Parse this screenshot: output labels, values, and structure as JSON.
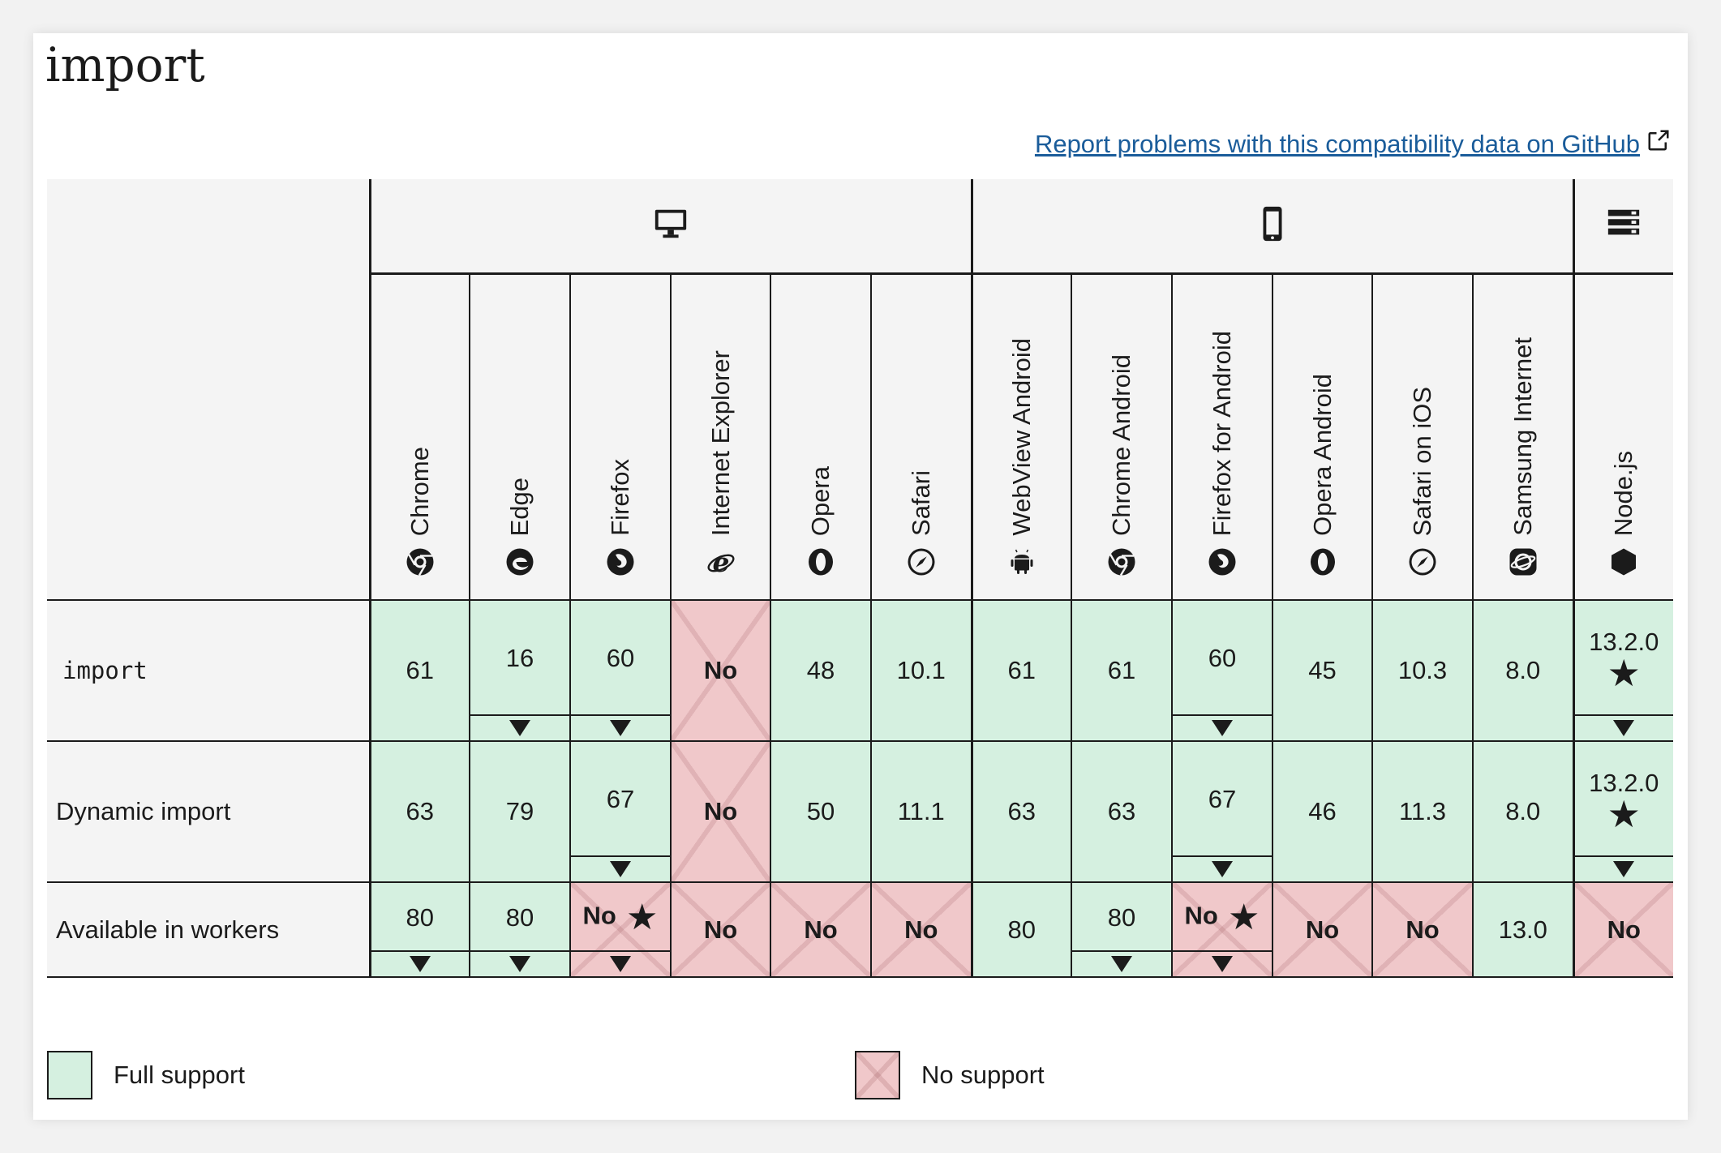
{
  "page": {
    "title": "import"
  },
  "report_link": {
    "label": "Report problems with this compatibility data on GitHub",
    "icon": "external-link-icon"
  },
  "accent_colors": {
    "full_support": "#d5f0e0",
    "no_support": "#f0c8ca",
    "link": "#1a5c9a"
  },
  "platforms": [
    {
      "name": "desktop",
      "icon": "desktop-icon"
    },
    {
      "name": "mobile",
      "icon": "mobile-icon"
    },
    {
      "name": "server",
      "icon": "server-icon"
    }
  ],
  "browsers": [
    {
      "name": "Chrome",
      "icon": "chrome-icon"
    },
    {
      "name": "Edge",
      "icon": "edge-icon"
    },
    {
      "name": "Firefox",
      "icon": "firefox-icon"
    },
    {
      "name": "Internet Explorer",
      "icon": "ie-icon"
    },
    {
      "name": "Opera",
      "icon": "opera-icon"
    },
    {
      "name": "Safari",
      "icon": "safari-icon"
    },
    {
      "name": "WebView Android",
      "icon": "android-icon"
    },
    {
      "name": "Chrome Android",
      "icon": "chrome-icon"
    },
    {
      "name": "Firefox for Android",
      "icon": "firefox-icon"
    },
    {
      "name": "Opera Android",
      "icon": "opera-icon"
    },
    {
      "name": "Safari on iOS",
      "icon": "safari-icon"
    },
    {
      "name": "Samsung Internet",
      "icon": "samsung-icon"
    },
    {
      "name": "Node.js",
      "icon": "nodejs-icon"
    }
  ],
  "features": [
    {
      "name": "import",
      "code": true,
      "cells": [
        {
          "val": "61",
          "support": "full",
          "toggle": false,
          "star": false
        },
        {
          "val": "16",
          "support": "full",
          "toggle": true,
          "star": false
        },
        {
          "val": "60",
          "support": "full",
          "toggle": true,
          "star": false
        },
        {
          "val": "No",
          "support": "no",
          "toggle": false,
          "star": false
        },
        {
          "val": "48",
          "support": "full",
          "toggle": false,
          "star": false
        },
        {
          "val": "10.1",
          "support": "full",
          "toggle": false,
          "star": false
        },
        {
          "val": "61",
          "support": "full",
          "toggle": false,
          "star": false
        },
        {
          "val": "61",
          "support": "full",
          "toggle": false,
          "star": false
        },
        {
          "val": "60",
          "support": "full",
          "toggle": true,
          "star": false
        },
        {
          "val": "45",
          "support": "full",
          "toggle": false,
          "star": false
        },
        {
          "val": "10.3",
          "support": "full",
          "toggle": false,
          "star": false
        },
        {
          "val": "8.0",
          "support": "full",
          "toggle": false,
          "star": false
        },
        {
          "val": "13.2.0",
          "support": "full",
          "toggle": true,
          "star": true
        }
      ]
    },
    {
      "name": "Dynamic import",
      "code": false,
      "cells": [
        {
          "val": "63",
          "support": "full",
          "toggle": false,
          "star": false
        },
        {
          "val": "79",
          "support": "full",
          "toggle": false,
          "star": false
        },
        {
          "val": "67",
          "support": "full",
          "toggle": true,
          "star": false
        },
        {
          "val": "No",
          "support": "no",
          "toggle": false,
          "star": false
        },
        {
          "val": "50",
          "support": "full",
          "toggle": false,
          "star": false
        },
        {
          "val": "11.1",
          "support": "full",
          "toggle": false,
          "star": false
        },
        {
          "val": "63",
          "support": "full",
          "toggle": false,
          "star": false
        },
        {
          "val": "63",
          "support": "full",
          "toggle": false,
          "star": false
        },
        {
          "val": "67",
          "support": "full",
          "toggle": true,
          "star": false
        },
        {
          "val": "46",
          "support": "full",
          "toggle": false,
          "star": false
        },
        {
          "val": "11.3",
          "support": "full",
          "toggle": false,
          "star": false
        },
        {
          "val": "8.0",
          "support": "full",
          "toggle": false,
          "star": false
        },
        {
          "val": "13.2.0",
          "support": "full",
          "toggle": true,
          "star": true
        }
      ]
    },
    {
      "name": "Available in workers",
      "code": false,
      "cells": [
        {
          "val": "80",
          "support": "full",
          "toggle": true,
          "star": false
        },
        {
          "val": "80",
          "support": "full",
          "toggle": true,
          "star": false
        },
        {
          "val": "No",
          "support": "no",
          "toggle": true,
          "star": true
        },
        {
          "val": "No",
          "support": "no",
          "toggle": false,
          "star": false
        },
        {
          "val": "No",
          "support": "no",
          "toggle": false,
          "star": false
        },
        {
          "val": "No",
          "support": "no",
          "toggle": false,
          "star": false
        },
        {
          "val": "80",
          "support": "full",
          "toggle": false,
          "star": false
        },
        {
          "val": "80",
          "support": "full",
          "toggle": true,
          "star": false
        },
        {
          "val": "No",
          "support": "no",
          "toggle": true,
          "star": true
        },
        {
          "val": "No",
          "support": "no",
          "toggle": false,
          "star": false
        },
        {
          "val": "No",
          "support": "no",
          "toggle": false,
          "star": false
        },
        {
          "val": "13.0",
          "support": "full",
          "toggle": false,
          "star": false
        },
        {
          "val": "No",
          "support": "no",
          "toggle": false,
          "star": false
        }
      ]
    }
  ],
  "legend": [
    {
      "label": "Full support",
      "support": "full"
    },
    {
      "label": "No support",
      "support": "no"
    }
  ]
}
